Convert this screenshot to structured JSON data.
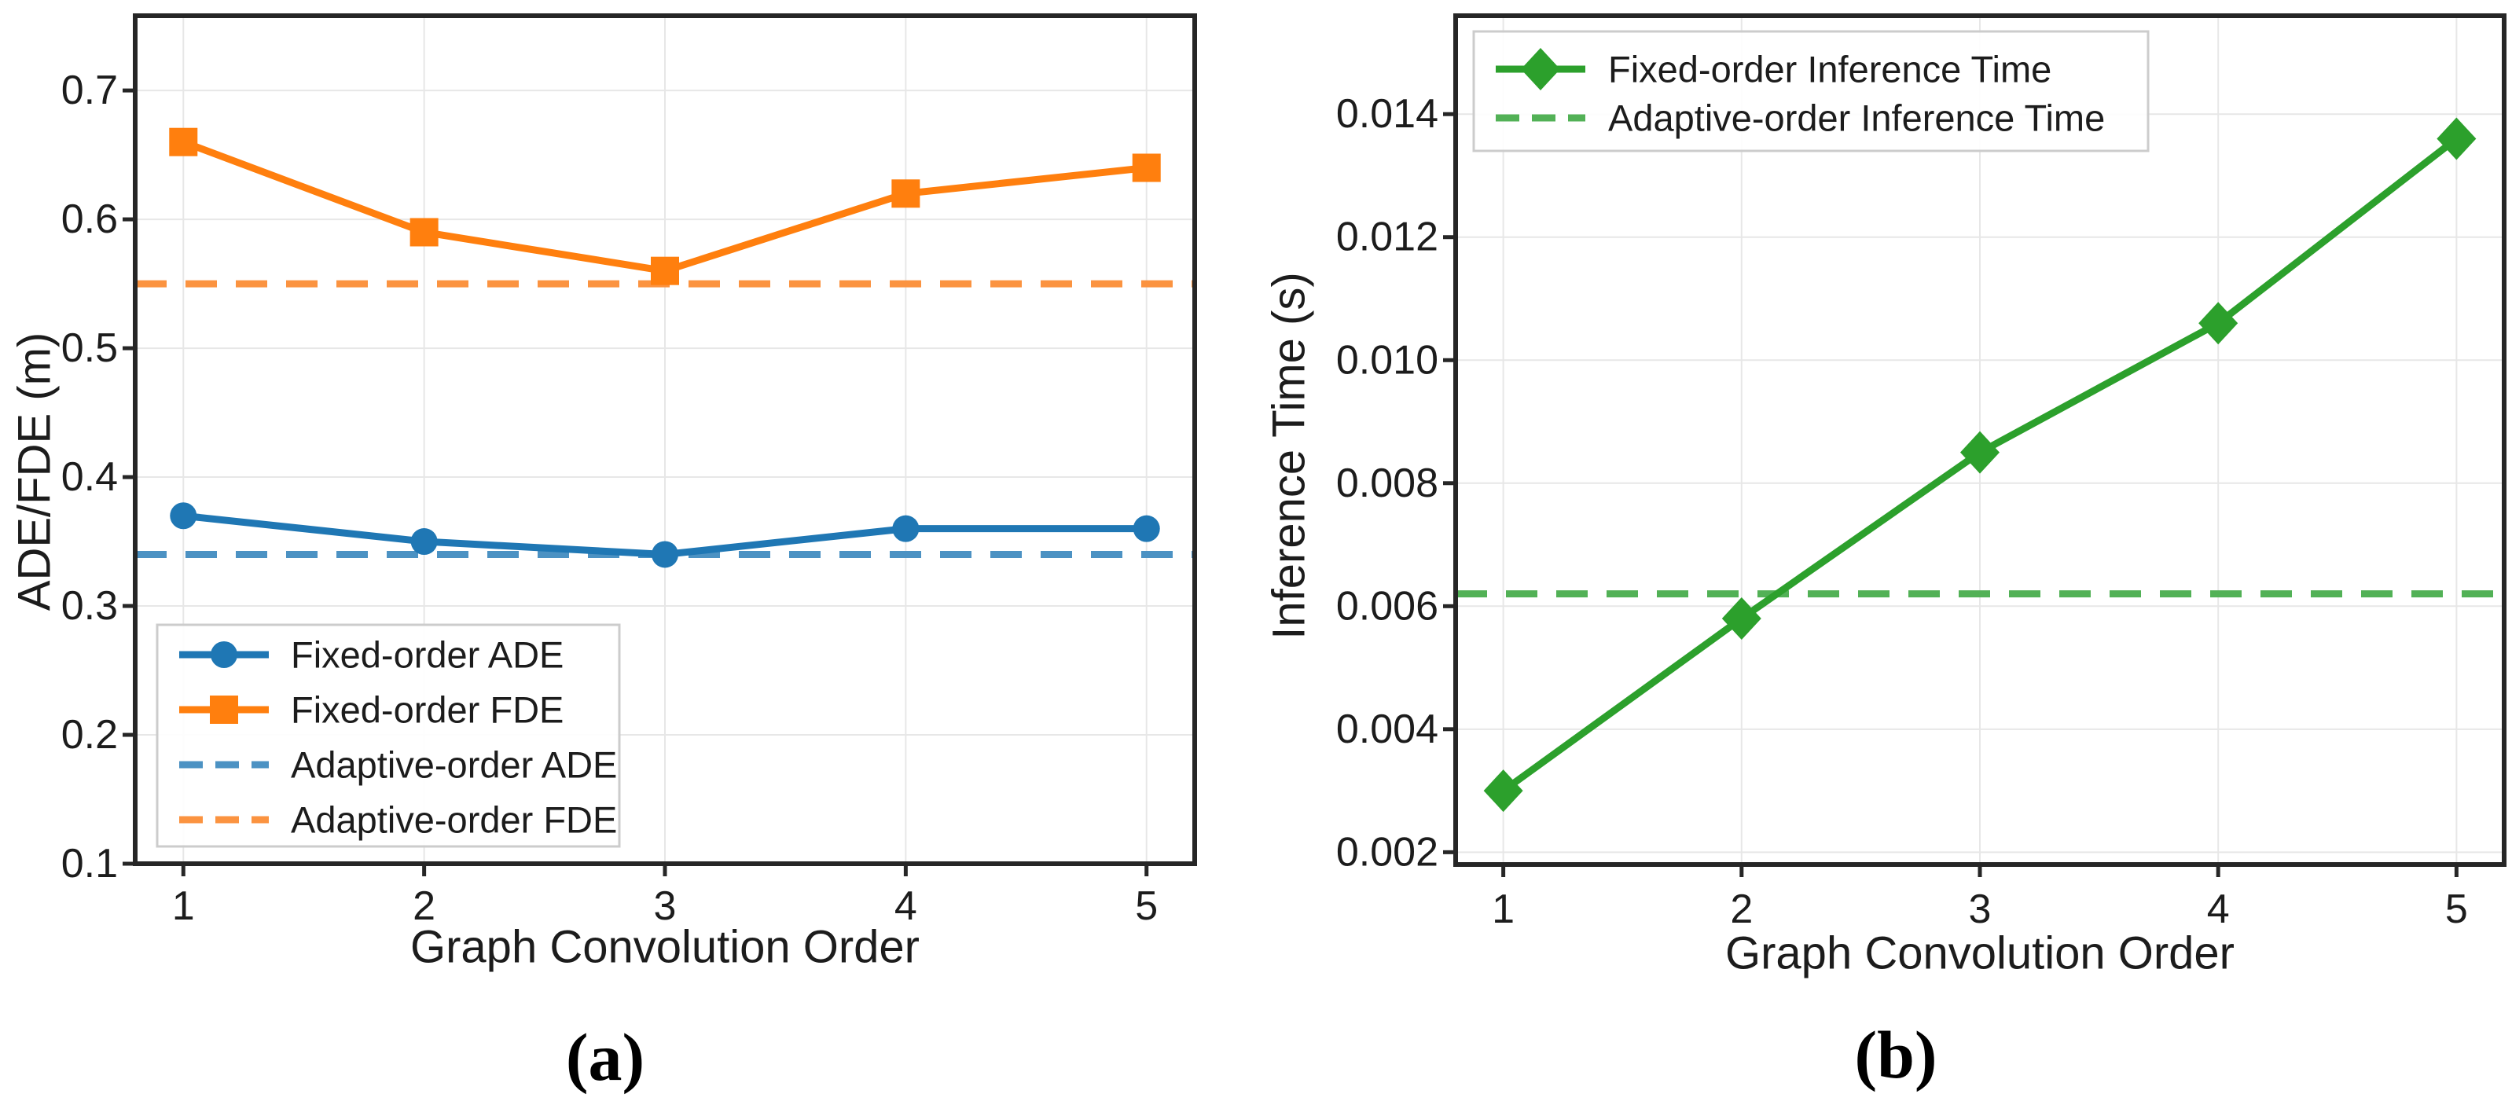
{
  "figure": {
    "background": "#ffffff",
    "captions": {
      "a": "(a)",
      "b": "(b)"
    }
  },
  "chart_data": [
    {
      "id": "panel-a",
      "type": "line",
      "title": "",
      "xlabel": "Graph Convolution Order",
      "ylabel": "ADE/FDE (m)",
      "x": [
        1,
        2,
        3,
        4,
        5
      ],
      "xticks": [
        1,
        2,
        3,
        4,
        5
      ],
      "xtick_labels": [
        "1",
        "2",
        "3",
        "4",
        "5"
      ],
      "yticks": [
        0.1,
        0.2,
        0.3,
        0.4,
        0.5,
        0.6,
        0.7
      ],
      "ytick_labels": [
        "0.1",
        "0.2",
        "0.3",
        "0.4",
        "0.5",
        "0.6",
        "0.7"
      ],
      "xlim": [
        0.8,
        5.2
      ],
      "ylim": [
        0.1,
        0.758
      ],
      "grid": true,
      "legend_position": "lower-left",
      "series": [
        {
          "name": "Fixed-order ADE",
          "kind": "line",
          "marker": "circle",
          "dash": false,
          "color": "#1f77b4",
          "values": [
            0.37,
            0.35,
            0.34,
            0.36,
            0.36
          ]
        },
        {
          "name": "Fixed-order FDE",
          "kind": "line",
          "marker": "square",
          "dash": false,
          "color": "#ff7f0e",
          "values": [
            0.66,
            0.59,
            0.56,
            0.62,
            0.64
          ]
        },
        {
          "name": "Adaptive-order ADE",
          "kind": "hline",
          "marker": "none",
          "dash": true,
          "color": "#4c92c3",
          "value": 0.34
        },
        {
          "name": "Adaptive-order FDE",
          "kind": "hline",
          "marker": "none",
          "dash": true,
          "color": "#fb9340",
          "value": 0.55
        }
      ]
    },
    {
      "id": "panel-b",
      "type": "line",
      "title": "",
      "xlabel": "Graph Convolution Order",
      "ylabel": "Inference Time (s)",
      "x": [
        1,
        2,
        3,
        4,
        5
      ],
      "xticks": [
        1,
        2,
        3,
        4,
        5
      ],
      "xtick_labels": [
        "1",
        "2",
        "3",
        "4",
        "5"
      ],
      "yticks": [
        0.002,
        0.004,
        0.006,
        0.008,
        0.01,
        0.012,
        0.014
      ],
      "ytick_labels": [
        "0.002",
        "0.004",
        "0.006",
        "0.008",
        "0.010",
        "0.012",
        "0.014"
      ],
      "xlim": [
        0.8,
        5.2
      ],
      "ylim": [
        0.0018,
        0.0156
      ],
      "grid": true,
      "legend_position": "upper-left",
      "series": [
        {
          "name": "Fixed-order Inference Time",
          "kind": "line",
          "marker": "diamond",
          "dash": false,
          "color": "#2ca02c",
          "values": [
            0.003,
            0.0058,
            0.0085,
            0.0106,
            0.0136
          ]
        },
        {
          "name": "Adaptive-order Inference Time",
          "kind": "hline",
          "marker": "none",
          "dash": true,
          "color": "#52b156",
          "value": 0.0062
        }
      ]
    }
  ]
}
